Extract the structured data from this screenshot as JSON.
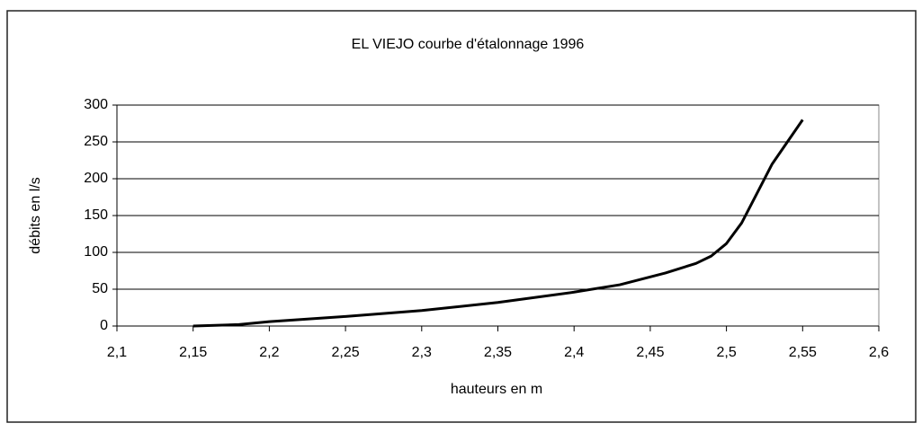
{
  "chart_data": {
    "type": "line",
    "title": "EL VIEJO courbe d'étalonnage 1996",
    "x_label": "hauteurs en m",
    "y_label": "débits en l/s",
    "x": [
      2.15,
      2.18,
      2.2,
      2.25,
      2.3,
      2.35,
      2.4,
      2.43,
      2.46,
      2.48,
      2.49,
      2.5,
      2.51,
      2.52,
      2.53,
      2.54,
      2.55
    ],
    "series": [
      {
        "name": "débits",
        "color": "#000000",
        "values": [
          0,
          2,
          6,
          13,
          21,
          32,
          46,
          56,
          72,
          85,
          95,
          112,
          140,
          180,
          220,
          250,
          280
        ]
      }
    ],
    "xlim": [
      2.1,
      2.6
    ],
    "xticks": [
      {
        "value": 2.1,
        "label": "2,1"
      },
      {
        "value": 2.15,
        "label": "2,15"
      },
      {
        "value": 2.2,
        "label": "2,2"
      },
      {
        "value": 2.25,
        "label": "2,25"
      },
      {
        "value": 2.3,
        "label": "2,3"
      },
      {
        "value": 2.35,
        "label": "2,35"
      },
      {
        "value": 2.4,
        "label": "2,4"
      },
      {
        "value": 2.45,
        "label": "2,45"
      },
      {
        "value": 2.5,
        "label": "2,5"
      },
      {
        "value": 2.55,
        "label": "2,55"
      },
      {
        "value": 2.6,
        "label": "2,6"
      }
    ],
    "ylim": [
      0,
      300
    ],
    "yticks": [
      0,
      50,
      100,
      150,
      200,
      250,
      300
    ],
    "grid": true
  }
}
